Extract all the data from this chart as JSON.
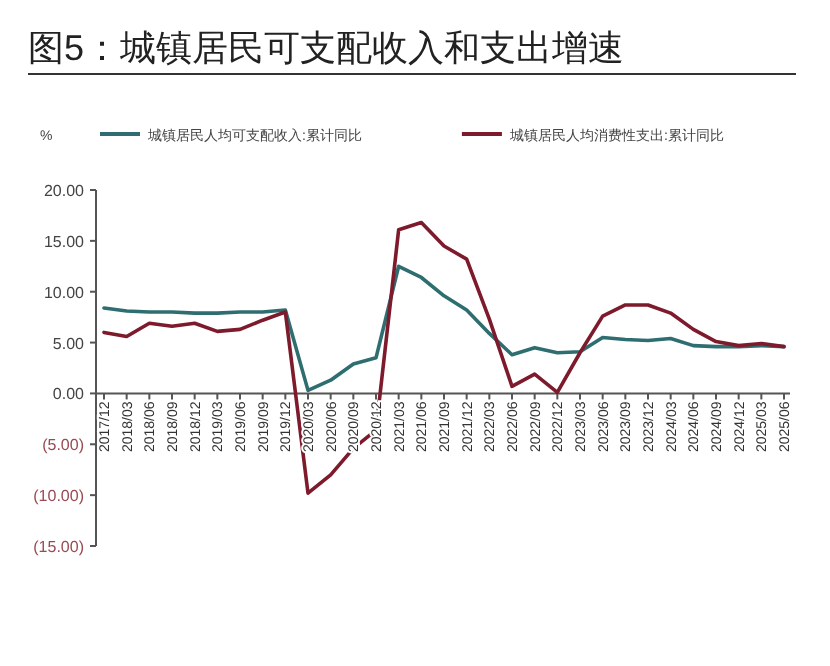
{
  "chart_data": {
    "type": "line",
    "title": "图5：城镇居民可支配收入和支出增速",
    "ylabel": "%",
    "categories": [
      "2017/12",
      "2018/03",
      "2018/06",
      "2018/09",
      "2018/12",
      "2019/03",
      "2019/06",
      "2019/09",
      "2019/12",
      "2020/03",
      "2020/06",
      "2020/09",
      "2020/12",
      "2021/03",
      "2021/06",
      "2021/09",
      "2021/12",
      "2022/03",
      "2022/06",
      "2022/09",
      "2022/12",
      "2023/03",
      "2023/06",
      "2023/09",
      "2023/12",
      "2024/03",
      "2024/06",
      "2024/09",
      "2024/12",
      "2025/03",
      "2025/06"
    ],
    "series": [
      {
        "name": "城镇居民人均可支配收入:累计同比",
        "color": "#2f6e70",
        "values": [
          8.4,
          8.1,
          8.0,
          8.0,
          7.9,
          7.9,
          8.0,
          8.0,
          8.2,
          0.3,
          1.3,
          2.9,
          3.5,
          12.5,
          11.4,
          9.6,
          8.2,
          5.9,
          3.8,
          4.5,
          4.0,
          4.1,
          5.5,
          5.3,
          5.2,
          5.4,
          4.7,
          4.6,
          4.6,
          4.7,
          4.6
        ]
      },
      {
        "name": "城镇居民人均消费性支出:累计同比",
        "color": "#7d1a2c",
        "values": [
          6.0,
          5.6,
          6.9,
          6.6,
          6.9,
          6.1,
          6.3,
          7.2,
          8.0,
          -9.8,
          -8.0,
          -5.4,
          -3.6,
          16.1,
          16.8,
          14.5,
          13.2,
          7.3,
          0.7,
          1.9,
          0.1,
          4.0,
          7.6,
          8.7,
          8.7,
          7.9,
          6.3,
          5.1,
          4.7,
          4.9,
          4.6
        ]
      }
    ],
    "ylim": [
      -15,
      20
    ],
    "yticks": [
      {
        "value": 20,
        "label": "20.00"
      },
      {
        "value": 15,
        "label": "15.00"
      },
      {
        "value": 10,
        "label": "10.00"
      },
      {
        "value": 5,
        "label": "5.00"
      },
      {
        "value": 0,
        "label": "0.00"
      },
      {
        "value": -5,
        "label": "(5.00)"
      },
      {
        "value": -10,
        "label": "(10.00)"
      },
      {
        "value": -15,
        "label": "(15.00)"
      }
    ],
    "legend": "top",
    "grid": false
  }
}
